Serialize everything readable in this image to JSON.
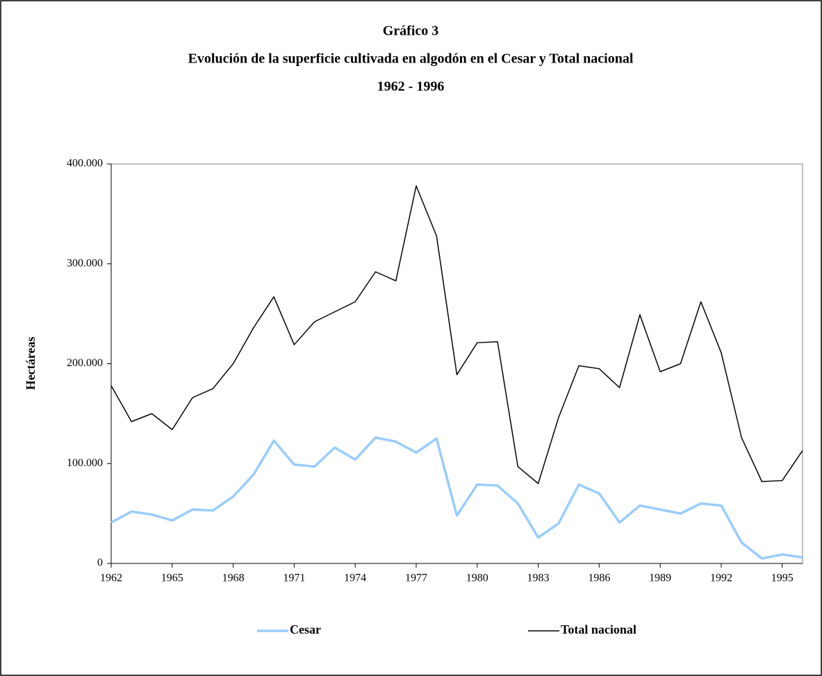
{
  "chart_data": {
    "type": "line",
    "title": "Gráfico 3",
    "subtitle": "Evolución de la superficie cultivada en algodón en el Cesar y Total nacional",
    "period": "1962 - 1996",
    "ylabel": "Hectáreas",
    "x": [
      1962,
      1963,
      1964,
      1965,
      1966,
      1967,
      1968,
      1969,
      1970,
      1971,
      1972,
      1973,
      1974,
      1975,
      1976,
      1977,
      1978,
      1979,
      1980,
      1981,
      1982,
      1983,
      1984,
      1985,
      1986,
      1987,
      1988,
      1989,
      1990,
      1991,
      1992,
      1993,
      1994,
      1995,
      1996
    ],
    "series": [
      {
        "name": "Cesar",
        "color": "#99ccff",
        "width": 3.5,
        "values": [
          41000,
          52000,
          49000,
          43000,
          54000,
          53000,
          67000,
          89000,
          123000,
          99000,
          97000,
          116000,
          104000,
          126000,
          122000,
          111000,
          125000,
          48000,
          79000,
          78000,
          60000,
          26000,
          40000,
          79000,
          70000,
          41000,
          58000,
          54000,
          50000,
          60000,
          58000,
          21000,
          5000,
          9000,
          6000
        ]
      },
      {
        "name": "Total nacional",
        "color": "#000000",
        "width": 1.5,
        "values": [
          178000,
          142000,
          150000,
          134000,
          166000,
          175000,
          200000,
          236000,
          267000,
          219000,
          242000,
          252000,
          262000,
          292000,
          283000,
          378000,
          328000,
          189000,
          221000,
          222000,
          97000,
          80000,
          146000,
          198000,
          195000,
          176000,
          249000,
          192000,
          200000,
          262000,
          211000,
          126000,
          82000,
          83000,
          113000
        ]
      }
    ],
    "xlim": [
      1962,
      1996
    ],
    "xticks": [
      1962,
      1965,
      1968,
      1971,
      1974,
      1977,
      1980,
      1983,
      1986,
      1989,
      1992,
      1995
    ],
    "ylim": [
      0,
      400000
    ],
    "yticks": [
      0,
      {
        "value": 100000,
        "label": "100.000"
      },
      {
        "value": 200000,
        "label": "200.000"
      },
      {
        "value": 300000,
        "label": "300.000"
      },
      {
        "value": 400000,
        "label": "400.000"
      }
    ],
    "legend": "bottom"
  }
}
